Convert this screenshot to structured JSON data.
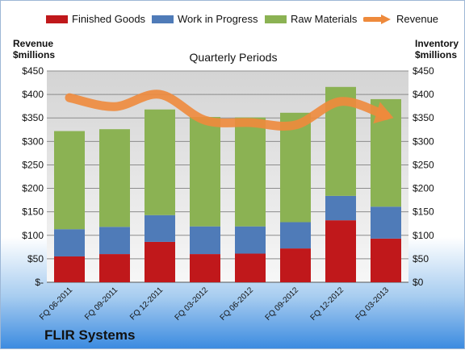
{
  "chart_data": {
    "type": "bar",
    "subtitle": "Quarterly Periods",
    "footer": "FLIR Systems",
    "left_axis_title": [
      "Revenue",
      "$millions"
    ],
    "right_axis_title": [
      "Inventory",
      "$millions"
    ],
    "categories": [
      "FQ 06-2011",
      "FQ 09-2011",
      "FQ 12-2011",
      "FQ 03-2012",
      "FQ 06-2012",
      "FQ 09-2012",
      "FQ 12-2012",
      "FQ 03-2013"
    ],
    "left_ticks": [
      "$-",
      "$50",
      "$100",
      "$150",
      "$200",
      "$250",
      "$300",
      "$350",
      "$400",
      "$450"
    ],
    "right_ticks": [
      "$0",
      "$50",
      "$100",
      "$150",
      "$200",
      "$250",
      "$300",
      "$350",
      "$400",
      "$450"
    ],
    "ylim": [
      0,
      450
    ],
    "grid": true,
    "legend_position": "top",
    "series": [
      {
        "name": "Finished Goods",
        "kind": "bar",
        "color": "#c0181b",
        "values": [
          55,
          60,
          86,
          60,
          61,
          72,
          132,
          93
        ]
      },
      {
        "name": "Work in Progress",
        "kind": "bar",
        "color": "#4f7bb8",
        "values": [
          58,
          58,
          57,
          59,
          58,
          56,
          52,
          68
        ]
      },
      {
        "name": "Raw Materials",
        "kind": "bar",
        "color": "#8bb253",
        "values": [
          209,
          208,
          225,
          233,
          232,
          233,
          232,
          229
        ]
      },
      {
        "name": "Revenue",
        "kind": "line",
        "color": "#ee8a3c",
        "values": [
          393,
          374,
          400,
          345,
          340,
          335,
          385,
          355
        ]
      }
    ]
  }
}
